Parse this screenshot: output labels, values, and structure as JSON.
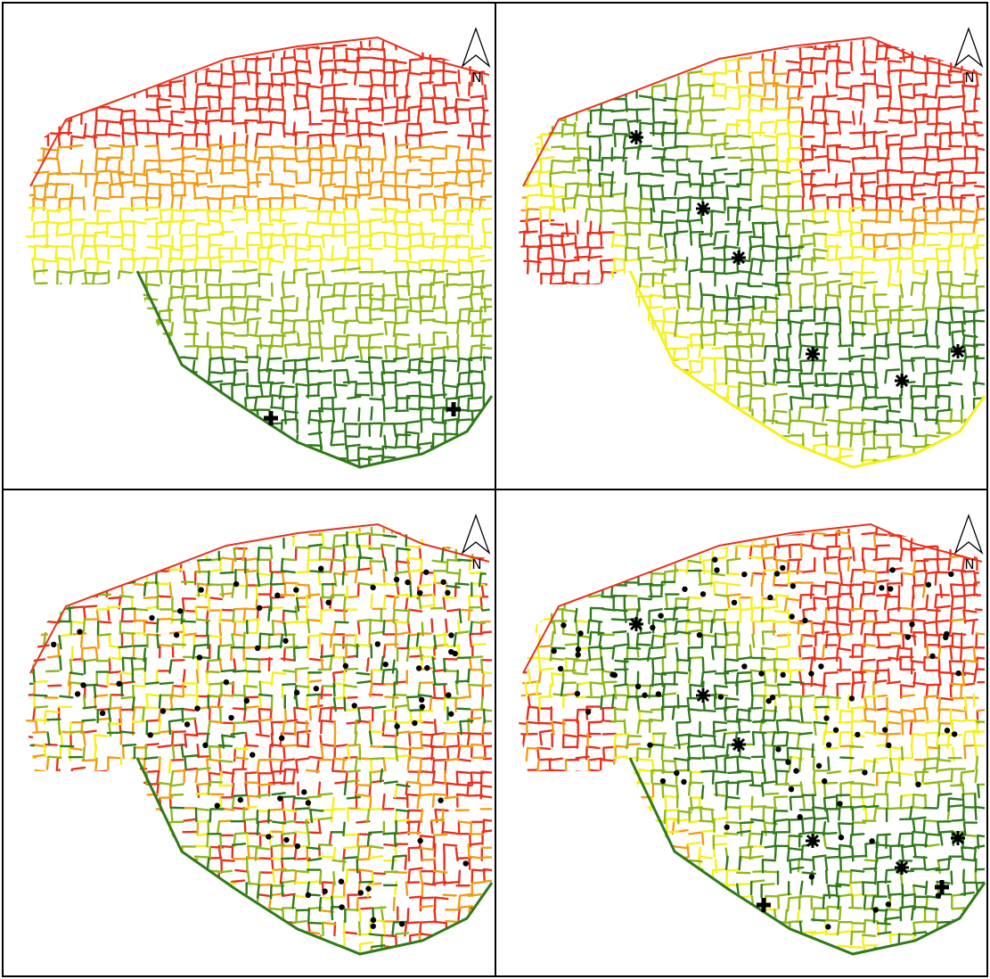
{
  "panels": [
    {
      "north": "N"
    },
    {
      "north": "N"
    },
    {
      "north": "N"
    },
    {
      "north": "N"
    }
  ]
}
